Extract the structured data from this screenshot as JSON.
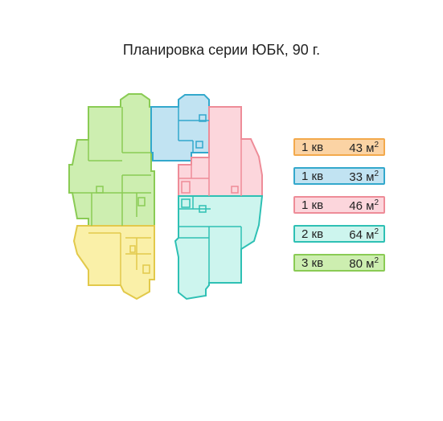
{
  "title": "Планировка серии ЮБК, 90 г.",
  "legend": [
    {
      "rooms": "1 кв",
      "area": "43",
      "unit": "м",
      "sup": "2",
      "fill": "#fbd3a4",
      "stroke": "#f3a94c"
    },
    {
      "rooms": "1 кв",
      "area": "33",
      "unit": "м",
      "sup": "2",
      "fill": "#c1e3f2",
      "stroke": "#33a8cc"
    },
    {
      "rooms": "1 кв",
      "area": "46",
      "unit": "м",
      "sup": "2",
      "fill": "#fcd6dc",
      "stroke": "#ee8c98"
    },
    {
      "rooms": "2 кв",
      "area": "64",
      "unit": "м",
      "sup": "2",
      "fill": "#cdf5ee",
      "stroke": "#2ec0b4"
    },
    {
      "rooms": "3 кв",
      "area": "80",
      "unit": "м",
      "sup": "2",
      "fill": "#cdeeb0",
      "stroke": "#8acb54"
    }
  ],
  "plan_colors": {
    "yellow_fill": "#faf0a8",
    "yellow_stroke": "#e2c94a",
    "green_fill": "#cdeeb0",
    "green_stroke": "#8acb54",
    "blue_fill": "#c1e3f2",
    "blue_stroke": "#33a8cc",
    "pink_fill": "#fcd6dc",
    "pink_stroke": "#ee8c98",
    "teal_fill": "#cdf5ee",
    "teal_stroke": "#2ec0b4"
  }
}
